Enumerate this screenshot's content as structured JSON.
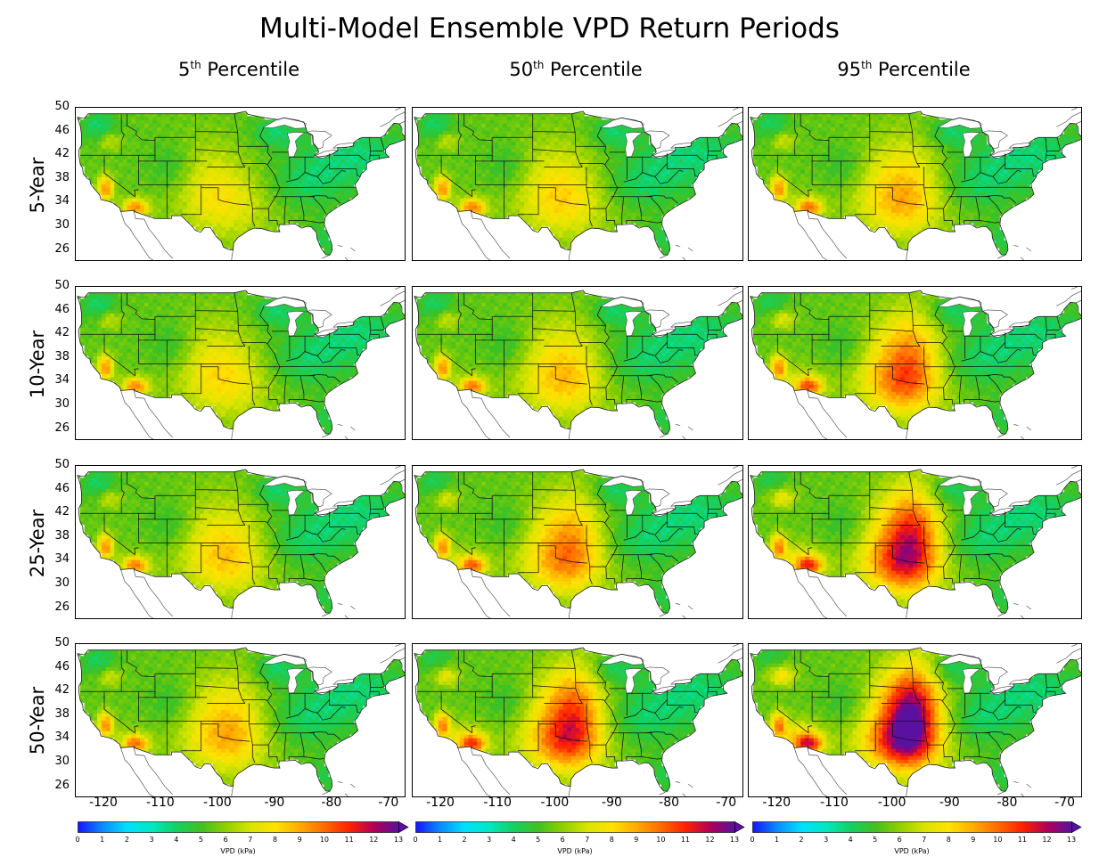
{
  "title": "Multi-Model Ensemble VPD Return Periods",
  "columns": [
    {
      "prefix": "5",
      "suffix": "th",
      "label": "Percentile"
    },
    {
      "prefix": "50",
      "suffix": "th",
      "label": "Percentile"
    },
    {
      "prefix": "95",
      "suffix": "th",
      "label": "Percentile"
    }
  ],
  "rows": [
    "5-Year",
    "10-Year",
    "25-Year",
    "50-Year"
  ],
  "lat_ticks": [
    "50",
    "46",
    "42",
    "38",
    "34",
    "30",
    "26"
  ],
  "lon_ticks": [
    "-120",
    "-110",
    "-100",
    "-90",
    "-80",
    "-70"
  ],
  "colorbar": {
    "label": "VPD (kPa)",
    "ticks": [
      "0",
      "1",
      "2",
      "3",
      "4",
      "5",
      "6",
      "7",
      "8",
      "9",
      "10",
      "11",
      "12",
      "13"
    ],
    "colors": [
      "#1414ff",
      "#0a8cff",
      "#00e0ff",
      "#00e8c0",
      "#14d060",
      "#40c020",
      "#90d000",
      "#d8e400",
      "#ffe200",
      "#ffaa00",
      "#ff6a00",
      "#ff2000",
      "#b0005a",
      "#5a10a0"
    ],
    "extend": "max"
  },
  "extent": {
    "lon": [
      -125,
      -67
    ],
    "lat": [
      24,
      50
    ]
  },
  "intensity": [
    [
      0.0,
      0.08,
      0.2
    ],
    [
      0.05,
      0.15,
      0.45
    ],
    [
      0.12,
      0.35,
      0.7
    ],
    [
      0.2,
      0.6,
      0.95
    ]
  ]
}
